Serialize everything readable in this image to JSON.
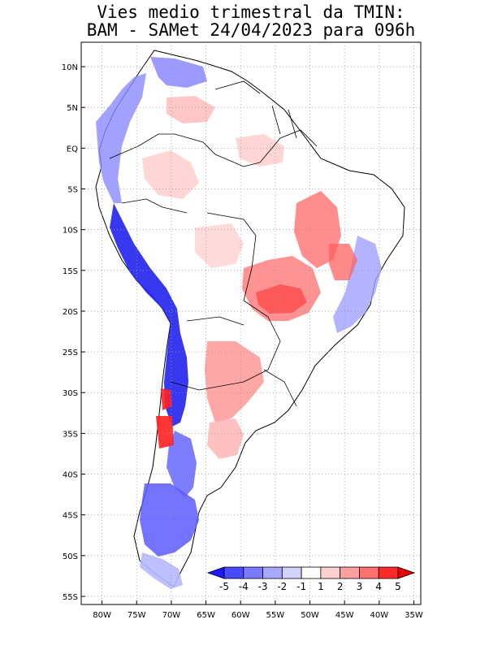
{
  "title": {
    "line1": "Vies medio trimestral da TMIN:",
    "line2": "BAM - SAMet 24/04/2023  para 096h"
  },
  "lat_labels": [
    "10N",
    "5N",
    "EQ",
    "5S",
    "10S",
    "15S",
    "20S",
    "25S",
    "30S",
    "35S",
    "40S",
    "45S",
    "50S",
    "55S"
  ],
  "lon_labels": [
    "80W",
    "75W",
    "70W",
    "65W",
    "60W",
    "55W",
    "50W",
    "45W",
    "40W",
    "35W"
  ],
  "colorbar": {
    "labels": [
      "-5",
      "-4",
      "-3",
      "-2",
      "-1",
      "1",
      "2",
      "3",
      "4",
      "5"
    ],
    "colors": [
      "#1a1aff",
      "#4a4aff",
      "#7a7aff",
      "#a8a8ff",
      "#d2d2ff",
      "#ffffff",
      "#ffd0d0",
      "#ffa0a0",
      "#ff7070",
      "#ff2a2a",
      "#ee0000"
    ]
  },
  "map": {
    "lon_range": [
      -83,
      -34
    ],
    "lat_range": [
      -56,
      13
    ],
    "gridlines": "dotted"
  }
}
